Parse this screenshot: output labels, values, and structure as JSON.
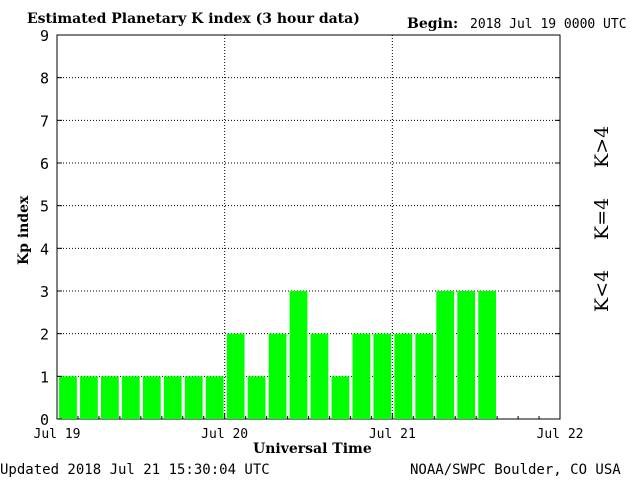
{
  "header": {
    "title": "Estimated Planetary K index (3 hour data)",
    "begin_label": "Begin:",
    "begin_value": "2018 Jul 19 0000 UTC"
  },
  "footer": {
    "updated": "Updated 2018 Jul 21 15:30:04 UTC",
    "source": "NOAA/SWPC Boulder, CO USA"
  },
  "legend": {
    "items": [
      {
        "text": "K<4",
        "color": "#00ff00"
      },
      {
        "text": "K=4",
        "color": "#ffd700"
      },
      {
        "text": "K>4",
        "color": "#ff2200"
      }
    ]
  },
  "chart_data": {
    "type": "bar",
    "title": "Estimated Planetary K index (3 hour data)",
    "xlabel": "Universal Time",
    "ylabel": "Kp index",
    "ylim": [
      0,
      9
    ],
    "yticks": [
      "0",
      "1",
      "2",
      "3",
      "4",
      "5",
      "6",
      "7",
      "8",
      "9"
    ],
    "xticks": [
      "Jul 19",
      "Jul 20",
      "Jul 21",
      "Jul 22"
    ],
    "interval_hours": 3,
    "values": [
      1,
      1,
      1,
      1,
      1,
      1,
      1,
      1,
      2,
      1,
      2,
      3,
      2,
      1,
      2,
      2,
      2,
      2,
      3,
      3,
      3
    ],
    "bar_color": "#00ff00",
    "grid": true
  }
}
